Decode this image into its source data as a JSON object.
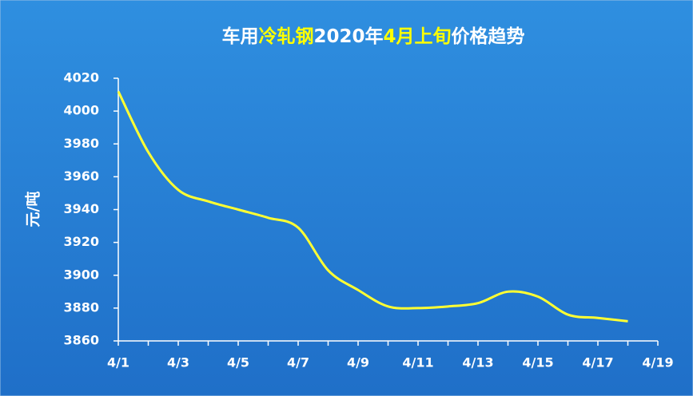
{
  "chart_data": {
    "type": "line",
    "title_parts": [
      {
        "text": "车用",
        "color": "#ffffff"
      },
      {
        "text": "冷轧钢",
        "color": "#ffff00"
      },
      {
        "text": "2020年",
        "color": "#ffffff"
      },
      {
        "text": "4月上旬",
        "color": "#ffff00"
      },
      {
        "text": "价格趋势",
        "color": "#ffffff"
      }
    ],
    "y_label": "元/吨",
    "categories": [
      "4/1",
      null,
      "4/3",
      null,
      "4/5",
      null,
      "4/7",
      null,
      "4/9",
      null,
      "4/11",
      null,
      "4/13",
      null,
      "4/15",
      null,
      "4/17",
      null,
      "4/19"
    ],
    "series": [
      {
        "color": "#ffff33",
        "values": [
          4012,
          3975,
          3952,
          3945,
          3940,
          3935,
          3929,
          3903,
          3891,
          3881,
          3880,
          3881,
          3883,
          3890,
          3887,
          3876,
          3874,
          3872,
          null
        ]
      }
    ],
    "ylim": [
      3860,
      4020
    ],
    "yticks": [
      3860,
      3880,
      3900,
      3920,
      3940,
      3960,
      3980,
      4000,
      4020
    ],
    "smooth": true
  }
}
